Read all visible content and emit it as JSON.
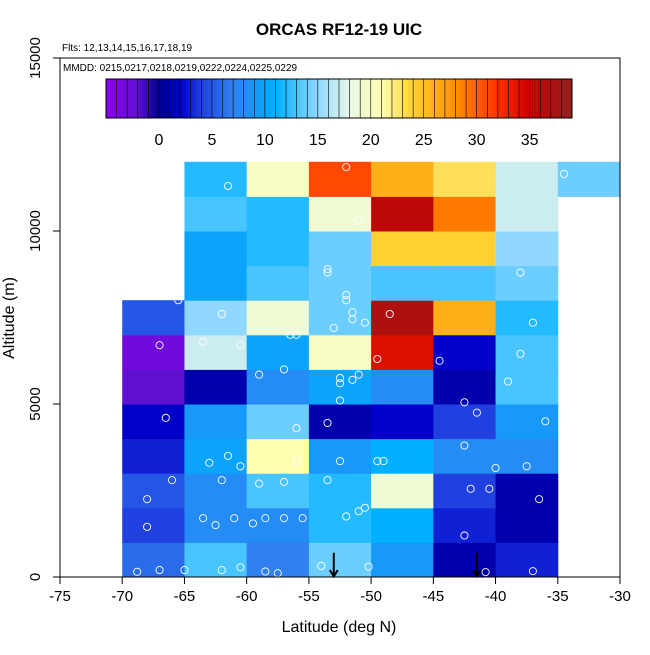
{
  "chart_data": {
    "type": "heatmap",
    "title": "ORCAS RF12-19 UIC",
    "subtitle_flights": "Flts: 12,13,14,15,16,17,18,19",
    "subtitle_dates": "MMDD: 0215,0217,0218,0219,0222,0224,0225,0229",
    "xlabel": "Latitude (deg N)",
    "ylabel": "Altitude (m)",
    "xlim": [
      -75,
      -30
    ],
    "ylim": [
      0,
      15000
    ],
    "x_ticks": [
      -75,
      -70,
      -65,
      -60,
      -55,
      -50,
      -45,
      -40,
      -35,
      -30
    ],
    "x_tick_labels": [
      "-75",
      "-70",
      "-65",
      "-60",
      "-55",
      "-50",
      "-45",
      "-40",
      "-35",
      "-30"
    ],
    "y_ticks": [
      0,
      5000,
      10000,
      15000
    ],
    "y_tick_labels": [
      "0",
      "5000",
      "10000",
      "15000"
    ],
    "colorbar": {
      "min": -5,
      "max": 39,
      "ticks": [
        0,
        5,
        10,
        15,
        20,
        25,
        30,
        35
      ],
      "tick_labels": [
        "0",
        "5",
        "10",
        "15",
        "20",
        "25",
        "30",
        "35"
      ]
    },
    "lat_bin_edges": [
      -70,
      -65,
      -60,
      -55,
      -50,
      -45,
      -40,
      -35,
      -30
    ],
    "altitude_bin_edges": [
      0,
      1000,
      2000,
      3000,
      4000,
      5000,
      6000,
      7000,
      8000,
      9000,
      10000,
      11000,
      12000
    ],
    "grid_values": [
      [
        6,
        13,
        7,
        14,
        9,
        1,
        3,
        null
      ],
      [
        4,
        8,
        8,
        12,
        11,
        3,
        1,
        null
      ],
      [
        5,
        8,
        13,
        12,
        19,
        4,
        1,
        null
      ],
      [
        3,
        10,
        21,
        9,
        11,
        8,
        8,
        null
      ],
      [
        2,
        9,
        14,
        1,
        2,
        4,
        9,
        null
      ],
      [
        -2,
        1,
        8,
        10,
        8,
        1,
        13,
        null
      ],
      [
        -3,
        17,
        10,
        20,
        34,
        2,
        13,
        null
      ],
      [
        5,
        15,
        19,
        14,
        37,
        26,
        12,
        null
      ],
      [
        null,
        10,
        13,
        14,
        13,
        13,
        14,
        null
      ],
      [
        null,
        10,
        12,
        14,
        24,
        24,
        15,
        null
      ],
      [
        null,
        13,
        12,
        19,
        36,
        29,
        17,
        null
      ],
      [
        null,
        12,
        20,
        31,
        26,
        23,
        17,
        14
      ]
    ],
    "observation_points": [
      [
        -68.8,
        150
      ],
      [
        -67,
        200
      ],
      [
        -65,
        200
      ],
      [
        -62,
        200
      ],
      [
        -60.5,
        280
      ],
      [
        -58.5,
        160
      ],
      [
        -57.5,
        110
      ],
      [
        -54,
        320
      ],
      [
        -50.2,
        300
      ],
      [
        -40.8,
        140
      ],
      [
        -37,
        170
      ],
      [
        -68,
        1450
      ],
      [
        -63.5,
        1700
      ],
      [
        -62.5,
        1500
      ],
      [
        -61,
        1700
      ],
      [
        -59.5,
        1550
      ],
      [
        -58.5,
        1700
      ],
      [
        -57,
        1700
      ],
      [
        -55.5,
        1700
      ],
      [
        -52,
        1750
      ],
      [
        -51,
        1900
      ],
      [
        -50.5,
        2000
      ],
      [
        -42.5,
        1200
      ],
      [
        -68,
        2250
      ],
      [
        -66,
        2800
      ],
      [
        -62,
        2800
      ],
      [
        -59,
        2700
      ],
      [
        -57,
        2750
      ],
      [
        -53.5,
        2800
      ],
      [
        -42,
        2550
      ],
      [
        -40.5,
        2550
      ],
      [
        -36.5,
        2250
      ],
      [
        -63,
        3300
      ],
      [
        -61.5,
        3500
      ],
      [
        -60.5,
        3200
      ],
      [
        -56,
        3350
      ],
      [
        -52.5,
        3350
      ],
      [
        -49.5,
        3350
      ],
      [
        -49,
        3350
      ],
      [
        -42.5,
        3800
      ],
      [
        -40,
        3150
      ],
      [
        -37.5,
        3200
      ],
      [
        -66.5,
        4600
      ],
      [
        -56,
        4300
      ],
      [
        -53.5,
        4450
      ],
      [
        -41.5,
        4750
      ],
      [
        -36,
        4500
      ],
      [
        -52.5,
        5100
      ],
      [
        -42.5,
        5050
      ],
      [
        -51.5,
        5700
      ],
      [
        -51,
        5850
      ],
      [
        -52.5,
        5750
      ],
      [
        -52.5,
        5600
      ],
      [
        -59,
        5850
      ],
      [
        -57,
        6000
      ],
      [
        -49.5,
        6300
      ],
      [
        -39,
        5650
      ],
      [
        -44.5,
        6250
      ],
      [
        -38,
        6450
      ],
      [
        -67,
        6700
      ],
      [
        -63.5,
        6800
      ],
      [
        -60.5,
        6700
      ],
      [
        -56.5,
        7000
      ],
      [
        -56,
        7000
      ],
      [
        -53,
        7200
      ],
      [
        -51.5,
        7450
      ],
      [
        -51.5,
        7650
      ],
      [
        -50.5,
        7350
      ],
      [
        -48.5,
        7600
      ],
      [
        -37,
        7350
      ],
      [
        -65.5,
        8000
      ],
      [
        -62,
        7600
      ],
      [
        -52,
        8000
      ],
      [
        -52,
        8150
      ],
      [
        -53.5,
        8800
      ],
      [
        -53.5,
        8900
      ],
      [
        -38,
        8800
      ],
      [
        -51,
        10300
      ],
      [
        -61.5,
        11300
      ],
      [
        -52,
        11850
      ],
      [
        -34.5,
        11650
      ]
    ],
    "arrow_markers_latitude": [
      -53,
      -41.5
    ]
  }
}
